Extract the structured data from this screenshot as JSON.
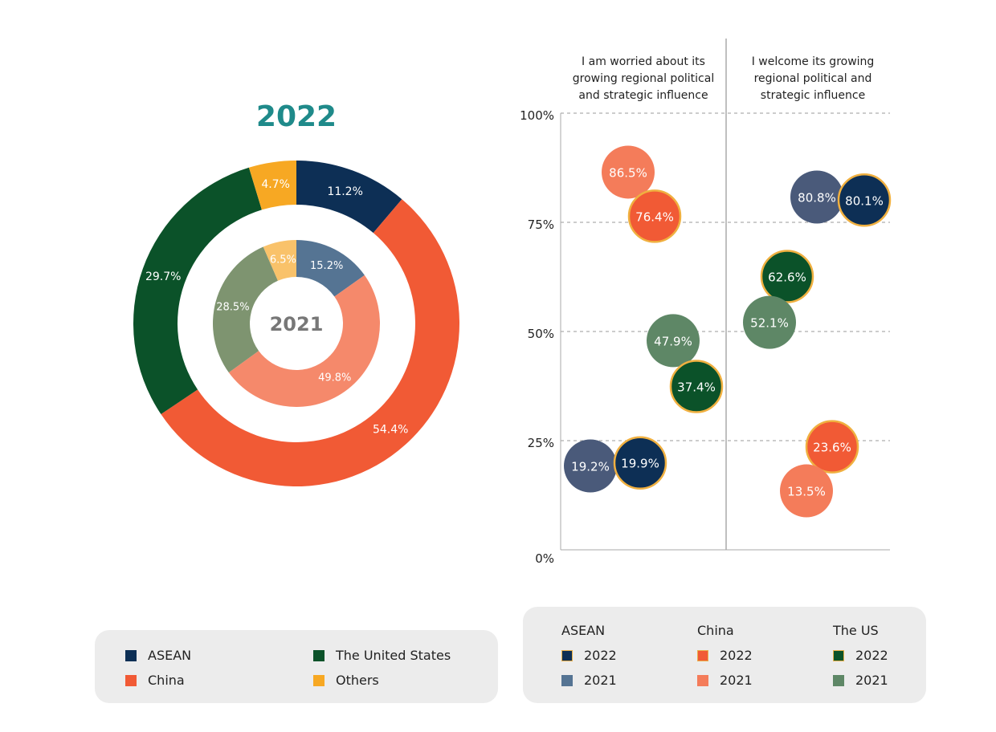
{
  "chart_data": [
    {
      "type": "pie",
      "subtype": "nested-donut",
      "title": "2022",
      "inner_title": "2021",
      "categories": [
        "ASEAN",
        "China",
        "The United States",
        "Others"
      ],
      "series": [
        {
          "name": "2022",
          "values": [
            11.2,
            54.4,
            29.7,
            4.7
          ],
          "labels": [
            "11.2%",
            "54.4%",
            "29.7%",
            "4.7%"
          ],
          "colors": [
            "#0d2f55",
            "#f15a35",
            "#0b5229",
            "#f7a823"
          ]
        },
        {
          "name": "2021",
          "values": [
            15.2,
            49.8,
            28.5,
            6.5
          ],
          "labels": [
            "15.2%",
            "49.8%",
            "28.5%",
            "6.5%"
          ],
          "colors": [
            "#557493",
            "#f5896b",
            "#7e9470",
            "#f9c26a"
          ]
        }
      ],
      "legend": [
        {
          "label": "ASEAN",
          "color": "#0d2f55"
        },
        {
          "label": "China",
          "color": "#f15a35"
        },
        {
          "label": "The United States",
          "color": "#0b5229"
        },
        {
          "label": "Others",
          "color": "#f7a823"
        }
      ],
      "legend_placement": "bottom"
    },
    {
      "type": "scatter",
      "subtype": "bubble",
      "columns": [
        "I am worried about its growing regional political and strategic influence",
        "I welcome its growing regional political and strategic influence"
      ],
      "y_ticks": [
        "0%",
        "25%",
        "50%",
        "75%",
        "100%"
      ],
      "ylim": [
        0,
        100
      ],
      "points": [
        {
          "group": "China",
          "year": "2021",
          "column": 0,
          "value": 86.5,
          "label": "86.5%",
          "color": "#f47c5a"
        },
        {
          "group": "China",
          "year": "2022",
          "column": 0,
          "value": 76.4,
          "label": "76.4%",
          "color": "#f15a35"
        },
        {
          "group": "The US",
          "year": "2021",
          "column": 0,
          "value": 47.9,
          "label": "47.9%",
          "color": "#5e8766"
        },
        {
          "group": "The US",
          "year": "2022",
          "column": 0,
          "value": 37.4,
          "label": "37.4%",
          "color": "#0b5229"
        },
        {
          "group": "ASEAN",
          "year": "2021",
          "column": 0,
          "value": 19.2,
          "label": "19.2%",
          "color": "#4a5a7a"
        },
        {
          "group": "ASEAN",
          "year": "2022",
          "column": 0,
          "value": 19.9,
          "label": "19.9%",
          "color": "#0d2f55"
        },
        {
          "group": "ASEAN",
          "year": "2021",
          "column": 1,
          "value": 80.8,
          "label": "80.8%",
          "color": "#4a5a7a"
        },
        {
          "group": "ASEAN",
          "year": "2022",
          "column": 1,
          "value": 80.1,
          "label": "80.1%",
          "color": "#0d2f55"
        },
        {
          "group": "The US",
          "year": "2022",
          "column": 1,
          "value": 62.6,
          "label": "62.6%",
          "color": "#0b5229"
        },
        {
          "group": "The US",
          "year": "2021",
          "column": 1,
          "value": 52.1,
          "label": "52.1%",
          "color": "#5e8766"
        },
        {
          "group": "China",
          "year": "2022",
          "column": 1,
          "value": 23.6,
          "label": "23.6%",
          "color": "#f15a35"
        },
        {
          "group": "China",
          "year": "2021",
          "column": 1,
          "value": 13.5,
          "label": "13.5%",
          "color": "#f47c5a"
        }
      ],
      "highlight_stroke": "#f0b040",
      "legend": [
        {
          "group": "ASEAN",
          "items": [
            {
              "label": "2022",
              "color": "#0d2f55"
            },
            {
              "label": "2021",
              "color": "#557493"
            }
          ]
        },
        {
          "group": "China",
          "items": [
            {
              "label": "2022",
              "color": "#f15a35"
            },
            {
              "label": "2021",
              "color": "#f47c5a"
            }
          ]
        },
        {
          "group": "The US",
          "items": [
            {
              "label": "2022",
              "color": "#0b5229"
            },
            {
              "label": "2021",
              "color": "#5e8766"
            }
          ]
        }
      ],
      "legend_placement": "bottom"
    }
  ]
}
